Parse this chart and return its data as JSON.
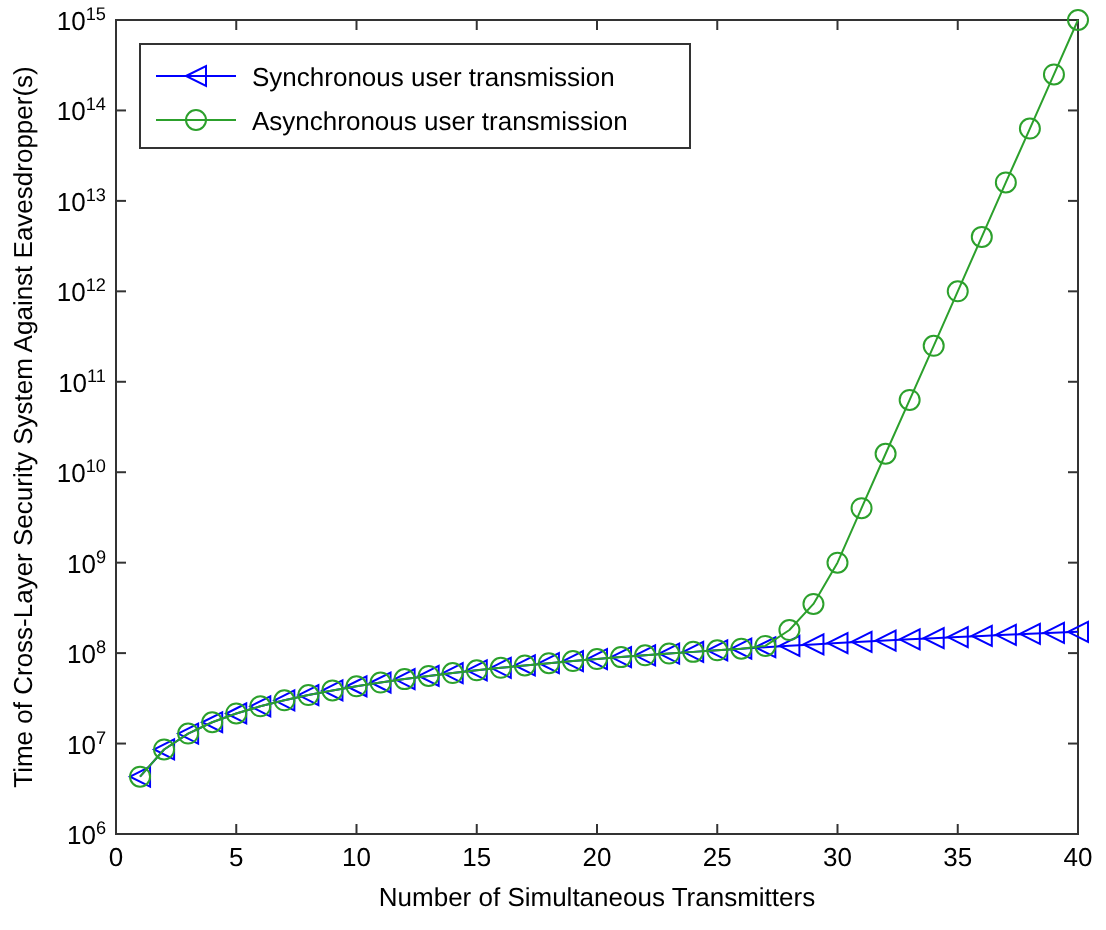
{
  "chart_data": {
    "type": "line",
    "xlabel": "Number of Simultaneous Transmitters",
    "ylabel": "Time of Cross-Layer Security System Against Eavesdropper(s)",
    "log": "y",
    "grid": false,
    "legend": "top left",
    "x": [
      1,
      2,
      3,
      4,
      5,
      6,
      7,
      8,
      9,
      10,
      11,
      12,
      13,
      14,
      15,
      16,
      17,
      18,
      19,
      20,
      21,
      22,
      23,
      24,
      25,
      26,
      27,
      28,
      29,
      30,
      31,
      32,
      33,
      34,
      35,
      36,
      37,
      38,
      39,
      40
    ],
    "xlim": [
      0,
      40
    ],
    "xticks": [
      0,
      5,
      10,
      15,
      20,
      25,
      30,
      35,
      40
    ],
    "ylim": [
      1000000,
      1000000000000000
    ],
    "yticks": [
      {
        "value": 1000000,
        "label": "10$^{6}$"
      },
      {
        "value": 10000000,
        "label": "10$^{7}$"
      },
      {
        "value": 100000000,
        "label": "10$^{8}$"
      },
      {
        "value": 1000000000,
        "label": "10$^{9}$"
      },
      {
        "value": 10000000000,
        "label": "10$^{10}$"
      },
      {
        "value": 100000000000,
        "label": "10$^{11}$"
      },
      {
        "value": 1000000000000,
        "label": "10$^{12}$"
      },
      {
        "value": 10000000000000,
        "label": "10$^{13}$"
      },
      {
        "value": 100000000000000,
        "label": "10$^{14}$"
      },
      {
        "value": 1000000000000000,
        "label": "10$^{15}$"
      }
    ],
    "series": [
      {
        "name": "Synchronous user transmission",
        "color": "#0000ff",
        "marker": "triangle",
        "values": [
          4300000,
          8600000,
          12900000,
          17200000,
          21500000,
          25800000,
          30100000,
          34400000,
          38700000,
          43000000,
          47300000,
          51600000,
          55900000,
          60200000,
          64500000,
          68800000,
          73100000,
          77400000,
          81700000,
          86000000,
          90300000,
          94600000,
          98900000,
          103200000,
          107500000,
          111800000,
          116100000,
          120400000,
          124700000,
          129000000,
          133300000,
          137600000,
          141900000,
          146200000,
          150500000,
          154800000,
          159100000,
          163400000,
          167700000,
          172000000
        ]
      },
      {
        "name": "Asynchronous user transmission",
        "color": "#2ca02c",
        "marker": "circle",
        "values": [
          4300000,
          8600000,
          12900000,
          17200000,
          21500000,
          25800000,
          30100000,
          34400000,
          38700000,
          43000000,
          47300000,
          51600000,
          55900000,
          60200000,
          64500000,
          68800000,
          73100000,
          77400000,
          81700000,
          86000000,
          90300000,
          94600000,
          98900000,
          103200000,
          107500000,
          111800000,
          120000000,
          180000000,
          350000000,
          1000000000,
          4000000000,
          16000000000,
          63000000000,
          250000000000,
          1000000000000,
          4000000000000,
          16000000000000,
          63000000000000,
          250000000000000,
          1000000000000000
        ]
      }
    ]
  }
}
